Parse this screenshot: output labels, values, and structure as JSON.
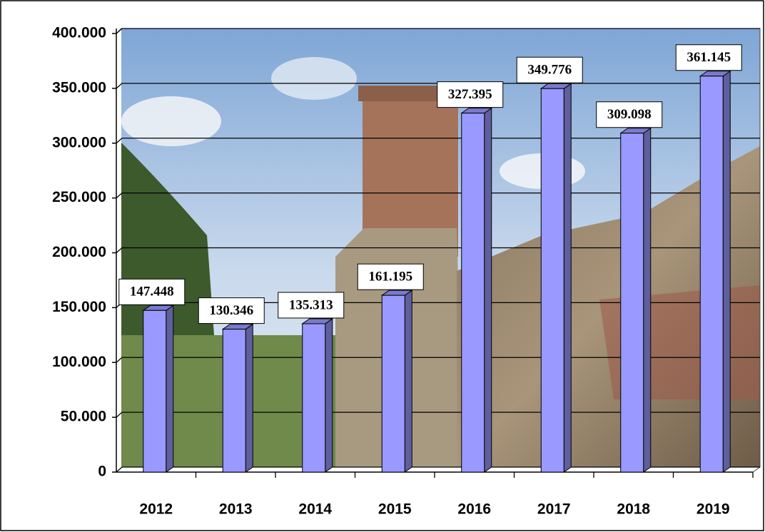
{
  "chart_data": {
    "type": "bar",
    "categories": [
      "2012",
      "2013",
      "2014",
      "2015",
      "2016",
      "2017",
      "2018",
      "2019"
    ],
    "values": [
      147448,
      130346,
      135313,
      161195,
      327395,
      349776,
      309098,
      361145
    ],
    "value_labels": [
      "147.448",
      "130.346",
      "135.313",
      "161.195",
      "327.395",
      "349.776",
      "309.098",
      "361.145"
    ],
    "color": "#9999ff",
    "ylim": [
      0,
      400000
    ],
    "yticks": [
      0,
      {
        "value": 50000,
        "label": "50.000"
      },
      {
        "value": 100000,
        "label": "100.000"
      },
      {
        "value": 150000,
        "label": "150.000"
      },
      {
        "value": 200000,
        "label": "200.000"
      },
      {
        "value": 250000,
        "label": "250.000"
      },
      {
        "value": 300000,
        "label": "300.000"
      },
      {
        "value": 350000,
        "label": "350.000"
      },
      {
        "value": 400000,
        "label": "400.000"
      }
    ],
    "grid": true
  }
}
